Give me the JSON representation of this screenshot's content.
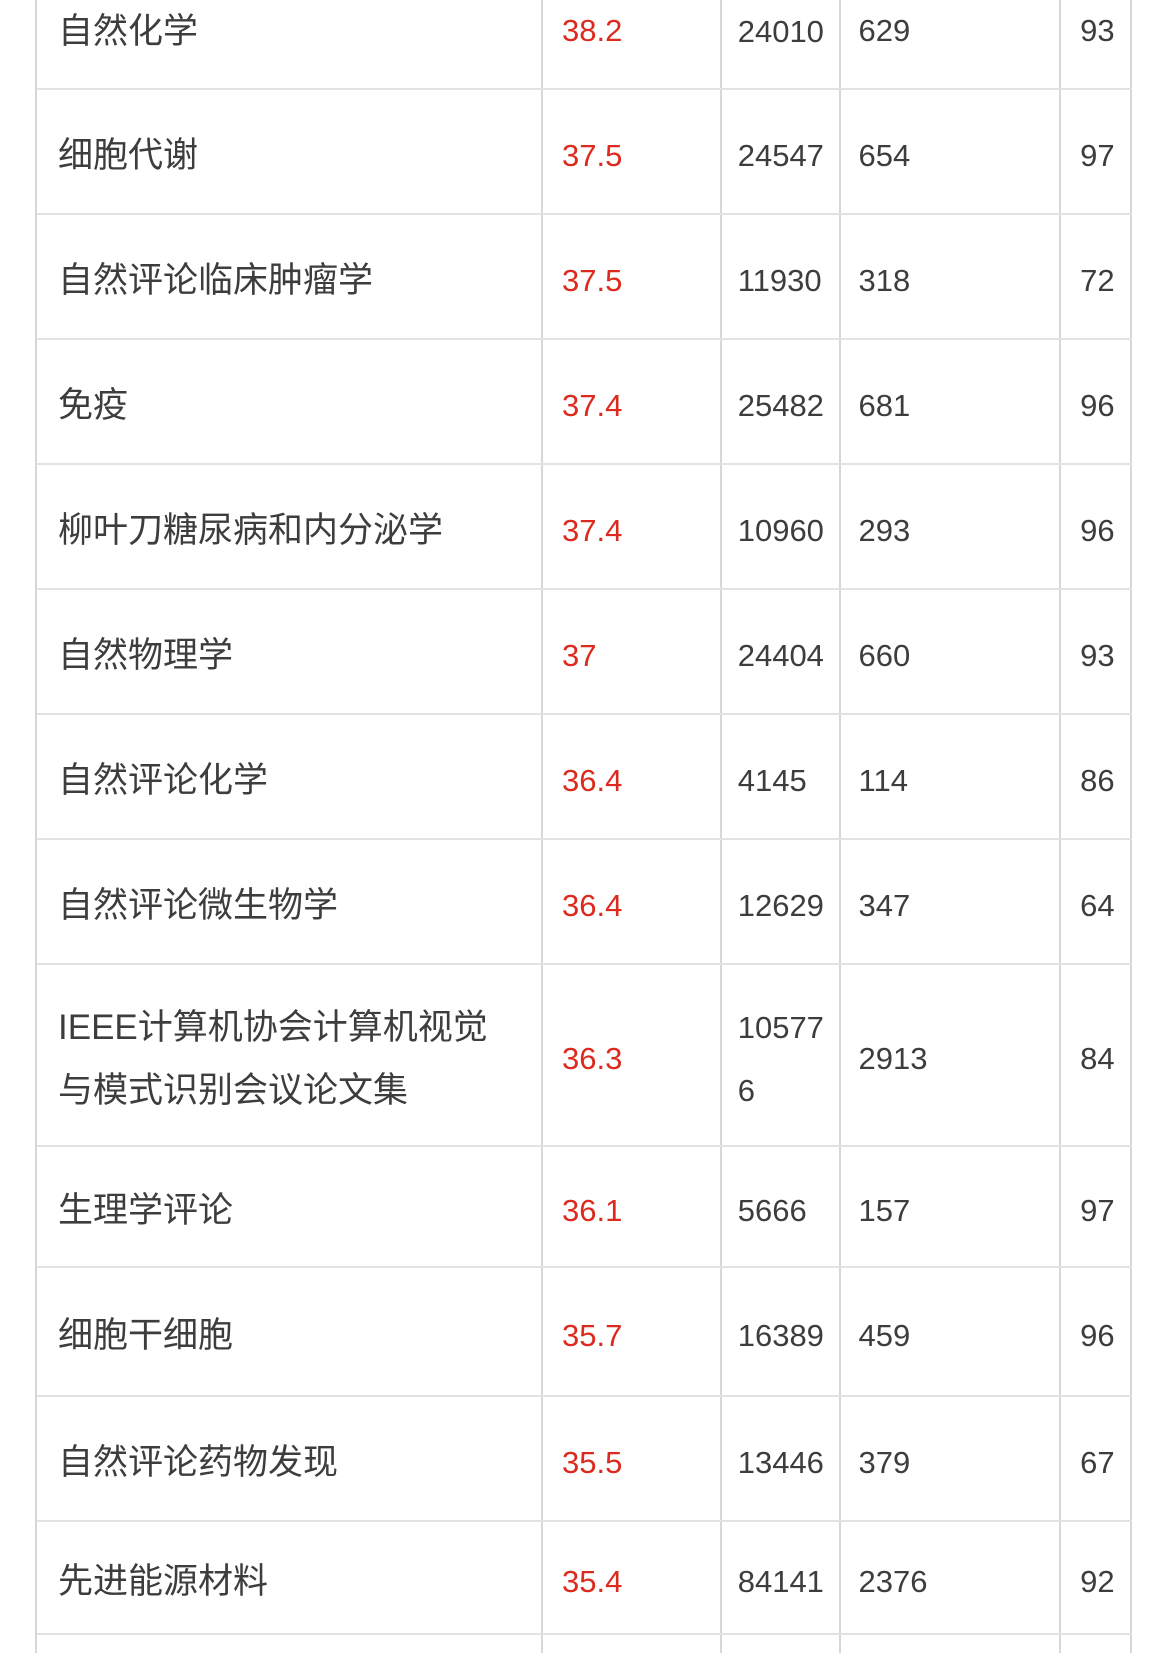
{
  "chart_data": {
    "type": "table",
    "rows": [
      [
        "自然化学",
        "38.2",
        "24010",
        "629",
        "93"
      ],
      [
        "细胞代谢",
        "37.5",
        "24547",
        "654",
        "97"
      ],
      [
        "自然评论临床肿瘤学",
        "37.5",
        "11930",
        "318",
        "72"
      ],
      [
        "免疫",
        "37.4",
        "25482",
        "681",
        "96"
      ],
      [
        "柳叶刀糖尿病和内分泌学",
        "37.4",
        "10960",
        "293",
        "96"
      ],
      [
        "自然物理学",
        "37",
        "24404",
        "660",
        "93"
      ],
      [
        "自然评论化学",
        "36.4",
        "4145",
        "114",
        "86"
      ],
      [
        "自然评论微生物学",
        "36.4",
        "12629",
        "347",
        "64"
      ],
      [
        "IEEE计算机协会计算机视觉与模式识别会议论文集",
        "36.3",
        "105776",
        "2913",
        "84"
      ],
      [
        "生理学评论",
        "36.1",
        "5666",
        "157",
        "97"
      ],
      [
        "细胞干细胞",
        "35.7",
        "16389",
        "459",
        "96"
      ],
      [
        "自然评论药物发现",
        "35.5",
        "13446",
        "379",
        "67"
      ],
      [
        "先进能源材料",
        "35.4",
        "84141",
        "2376",
        "92"
      ]
    ]
  },
  "colors": {
    "score_red": "#dc2a1e",
    "text_dark": "#3d3d3d",
    "border_vertical": "#d7d7d7",
    "border_horizontal": "#e2e2e2",
    "background": "#ffffff"
  }
}
